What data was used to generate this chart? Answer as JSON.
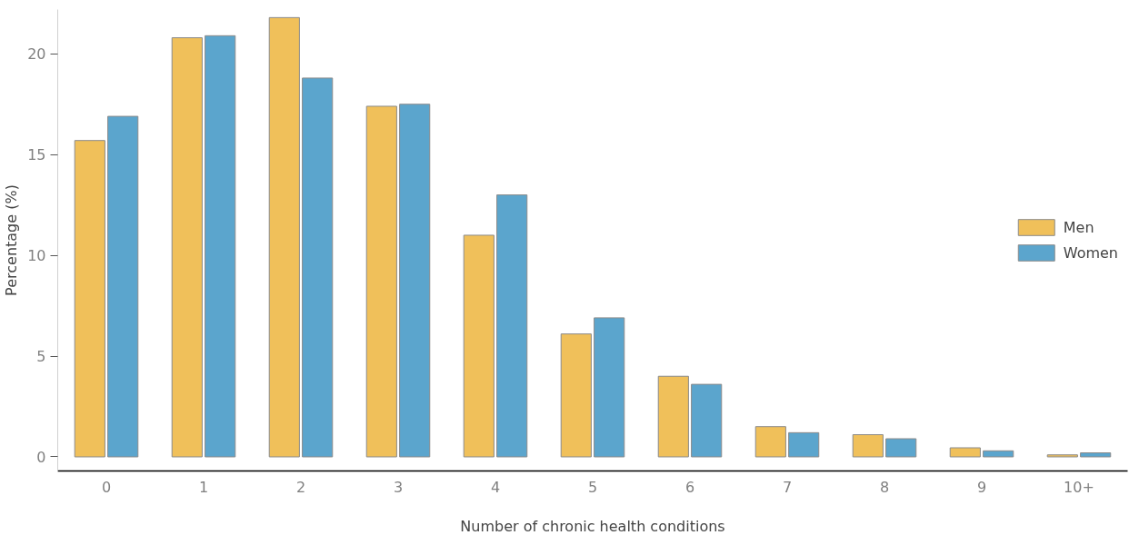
{
  "chart_data": {
    "type": "bar",
    "xlabel": "Number of chronic health conditions",
    "ylabel": "Percentage (%)",
    "categories": [
      "0",
      "1",
      "2",
      "3",
      "4",
      "5",
      "6",
      "7",
      "8",
      "9",
      "10+"
    ],
    "series": [
      {
        "name": "Men",
        "color": "#f0c05a",
        "values": [
          15.7,
          20.8,
          21.8,
          17.4,
          11.0,
          6.1,
          4.0,
          1.5,
          1.1,
          0.45,
          0.1
        ]
      },
      {
        "name": "Women",
        "color": "#5ba5cd",
        "values": [
          16.9,
          20.9,
          18.8,
          17.5,
          13.0,
          6.9,
          3.6,
          1.2,
          0.9,
          0.3,
          0.2
        ]
      }
    ],
    "ylim": [
      -0.7,
      22.2
    ],
    "yticks": [
      0,
      5,
      10,
      15,
      20
    ],
    "grid": false,
    "legend": "right"
  }
}
